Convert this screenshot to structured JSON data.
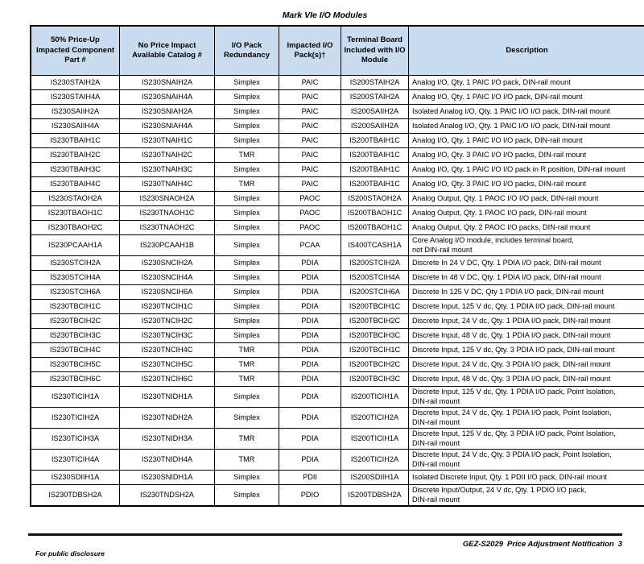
{
  "title": "Mark VIe I/O Modules",
  "table": {
    "headers": [
      "50% Price-Up Impacted Component Part #",
      "No Price Impact Available Catalog #",
      "I/O Pack Redundancy",
      "Impacted I/O Pack(s)†",
      "Terminal Board Included with I/O Module",
      "Description"
    ],
    "rows": [
      [
        "IS230STAIH2A",
        "IS230SNAIH2A",
        "Simplex",
        "PAIC",
        "IS200STAIH2A",
        "Analog I/O, Qty. 1 PAIC I/O pack, DIN-rail mount"
      ],
      [
        "IS230STAIH4A",
        "IS230SNAIH4A",
        "Simplex",
        "PAIC",
        "IS200STAIH2A",
        "Analog I/O, Qty. 1 PAIC I/O I/O pack, DIN-rail mount"
      ],
      [
        "IS230SAIIH2A",
        "IS230SNIAH2A",
        "Simplex",
        "PAIC",
        "IS200SAIIH2A",
        "Isolated Analog I/O, Qty. 1 PAIC I/O I/O pack, DIN-rail mount"
      ],
      [
        "IS230SAIIH4A",
        "IS230SNIAH4A",
        "Simplex",
        "PAIC",
        "IS200SAIIH2A",
        "Isolated Analog I/O, Qty. 1 PAIC I/O I/O pack, DIN-rail mount"
      ],
      [
        "IS230TBAIH1C",
        "IS230TNAIH1C",
        "Simplex",
        "PAIC",
        "IS200TBAIH1C",
        "Analog I/O, Qty. 1 PAIC I/O I/O pack, DIN-rail mount"
      ],
      [
        "IS230TBAIH2C",
        "IS230TNAIH2C",
        "TMR",
        "PAIC",
        "IS200TBAIH1C",
        "Analog I/O, Qty. 3 PAIC I/O I/O packs, DIN-rail mount"
      ],
      [
        "IS230TBAIH3C",
        "IS230TNAIH3C",
        "Simplex",
        "PAIC",
        "IS200TBAIH1C",
        "Analog I/O, Qty. 1 PAIC I/O I/O pack in R position, DIN-rail mount"
      ],
      [
        "IS230TBAIH4C",
        "IS230TNAIH4C",
        "TMR",
        "PAIC",
        "IS200TBAIH1C",
        "Analog I/O, Qty. 3 PAIC I/O I/O packs, DIN-rail mount"
      ],
      [
        "IS230STAOH2A",
        "IS230SNAOH2A",
        "Simplex",
        "PAOC",
        "IS200STAOH2A",
        "Analog Output, Qty. 1 PAOC I/O I/O pack, DIN-rail mount"
      ],
      [
        "IS230TBAOH1C",
        "IS230TNAOH1C",
        "Simplex",
        "PAOC",
        "IS200TBAOH1C",
        "Analog Output, Qty. 1 PAOC I/O pack, DIN-rail mount"
      ],
      [
        "IS230TBAOH2C",
        "IS230TNAOH2C",
        "Simplex",
        "PAOC",
        "IS200TBAOH1C",
        "Analog Output, Qty. 2 PAOC I/O packs, DIN-rail mount"
      ],
      [
        "IS230PCAAH1A",
        "IS230PCAAH1B",
        "Simplex",
        "PCAA",
        "IS400TCASH1A",
        "Core Analog I/O module, includes terminal board,\nnot DIN-rail mount"
      ],
      [
        "IS230STCIH2A",
        "IS230SNCIH2A",
        "Simplex",
        "PDIA",
        "IS200STCIH2A",
        "Discrete In 24 V DC, Qty. 1 PDIA I/O pack, DIN-rail mount"
      ],
      [
        "IS230STCIH4A",
        "IS230SNCIH4A",
        "Simplex",
        "PDIA",
        "IS200STCIH4A",
        "Discrete In 48 V DC, Qty. 1 PDIA I/O pack, DIN-rail mount"
      ],
      [
        "IS230STCIH6A",
        "IS230SNCIH6A",
        "Simplex",
        "PDIA",
        "IS200STCIH6A",
        "Discrete In 125 V DC, Qty 1 PDIA I/O pack, DIN-rail mount"
      ],
      [
        "IS230TBCIH1C",
        "IS230TNCIH1C",
        "Simplex",
        "PDIA",
        "IS200TBCIH1C",
        "Discrete Input, 125 V dc, Qty. 1 PDIA I/O pack, DIN-rail mount"
      ],
      [
        "IS230TBCIH2C",
        "IS230TNCIH2C",
        "Simplex",
        "PDIA",
        "IS200TBCIH2C",
        "Discrete Input, 24 V dc, Qty. 1 PDIA I/O pack, DIN-rail mount"
      ],
      [
        "IS230TBCIH3C",
        "IS230TNCIH3C",
        "Simplex",
        "PDIA",
        "IS200TBCIH3C",
        "Discrete Input, 48 V dc, Qty. 1 PDIA I/O pack, DIN-rail mount"
      ],
      [
        "IS230TBCIH4C",
        "IS230TNCIH4C",
        "TMR",
        "PDIA",
        "IS200TBCIH1C",
        "Discrete Input, 125 V dc, Qty. 3 PDIA I/O pack, DIN-rail mount"
      ],
      [
        "IS230TBCIH5C",
        "IS230TNCIH5C",
        "TMR",
        "PDIA",
        "IS200TBCIH2C",
        "Discrete Input, 24 V dc, Qty. 3 PDIA I/O pack, DIN-rail mount"
      ],
      [
        "IS230TBCIH6C",
        "IS230TNCIH6C",
        "TMR",
        "PDIA",
        "IS200TBCIH3C",
        "Discrete Input, 48 V dc, Qty. 3 PDIA I/O pack, DIN-rail mount"
      ],
      [
        "IS230TICIH1A",
        "IS230TNIDH1A",
        "Simplex",
        "PDIA",
        "IS200TICIH1A",
        "Discrete Input, 125 V dc, Qty. 1 PDIA I/O pack, Point Isolation,\nDIN-rail mount"
      ],
      [
        "IS230TICIH2A",
        "IS230TNIDH2A",
        "Simplex",
        "PDIA",
        "IS200TICIH2A",
        "Discrete Input, 24 V dc, Qty. 1 PDIA I/O pack, Point Isolation,\nDIN-rail mount"
      ],
      [
        "IS230TICIH3A",
        "IS230TNIDH3A",
        "TMR",
        "PDIA",
        "IS200TICIH1A",
        "Discrete Input, 125 V dc, Qty. 3 PDIA I/O pack, Point Isolation,\nDIN-rail mount"
      ],
      [
        "IS230TICIH4A",
        "IS230TNIDH4A",
        "TMR",
        "PDIA",
        "IS200TICIH2A",
        "Discrete Input, 24 V dc, Qty. 3 PDIA I/O pack, Point Isolation,\nDIN-rail mount"
      ],
      [
        "IS230SDIIH1A",
        "IS230SNIDH1A",
        "Simplex",
        "PDII",
        "IS200SDIIH1A",
        "Isolated Discrete Input, Qty. 1 PDII I/O pack, DIN-rail mount"
      ],
      [
        "IS230TDBSH2A",
        "IS230TNDSH2A",
        "Simplex",
        "PDIO",
        "IS200TDBSH2A",
        "Discrete Input/Output, 24 V dc, Qty. 1 PDIO I/O pack,\nDIN-rail mount"
      ]
    ]
  },
  "footer": {
    "doc_ref": "GEZ-S2029",
    "doc_title": "Price Adjustment Notification",
    "page_number": "3",
    "disclosure": "For public disclosure"
  },
  "colors": {
    "header_bg": "#c9dcf0",
    "border": "#000000"
  }
}
